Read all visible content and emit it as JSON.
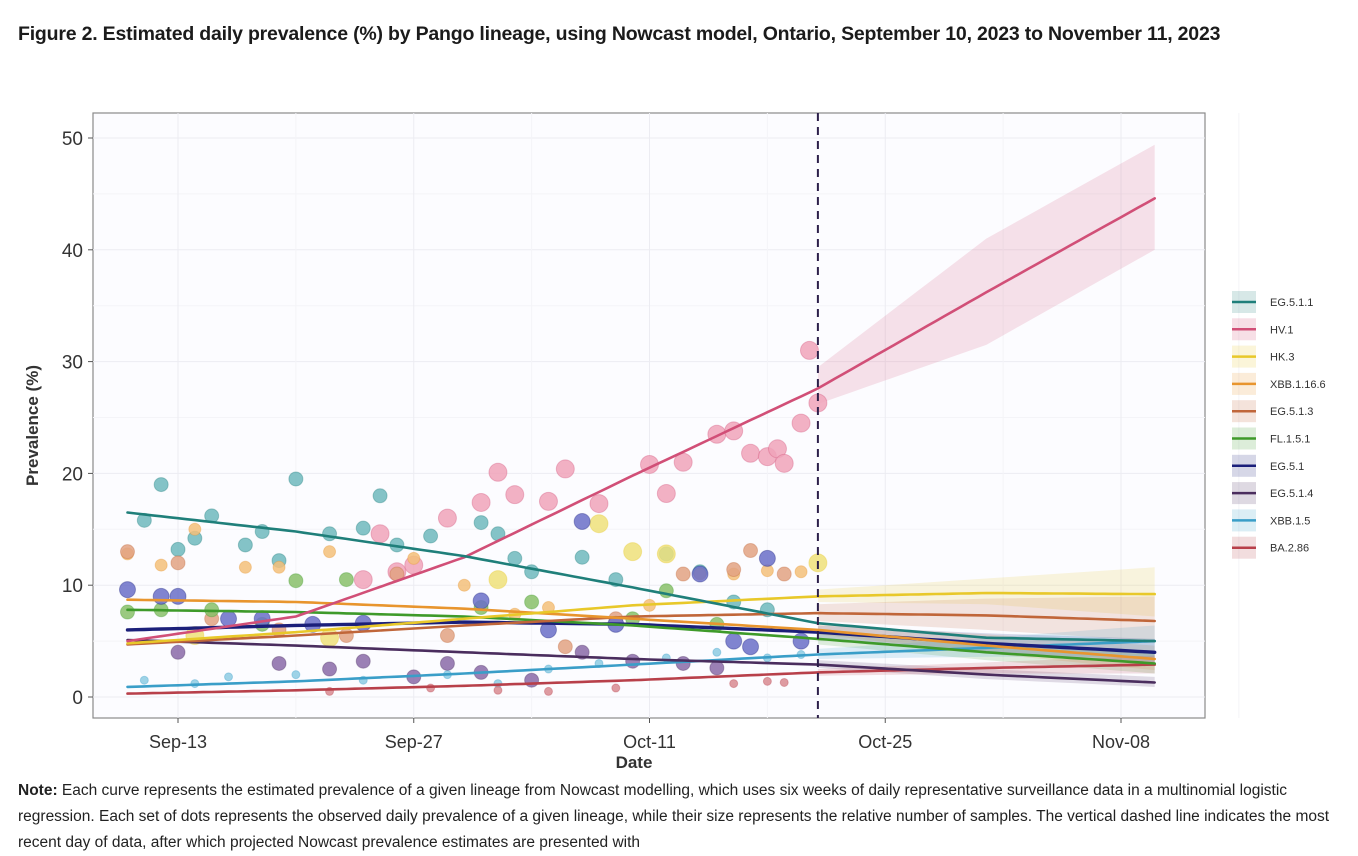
{
  "figure": {
    "title": "Figure 2. Estimated daily prevalence (%) by Pango lineage, using Nowcast model, Ontario, September 10, 2023 to November 11, 2023",
    "note_label": "Note:",
    "note_text": " Each curve represents the estimated prevalence of a given lineage from Nowcast modelling, which uses six weeks of daily representative surveillance data in a multinomial logistic regression. Each set of dots represents the observed daily prevalence of a given lineage, while their size represents the relative number of samples. The vertical dashed line indicates the most recent day of data, after which projected Nowcast prevalence estimates are presented with"
  },
  "chart_data": {
    "type": "line",
    "title": "Estimated daily prevalence (%) by Pango lineage, using Nowcast model, Ontario, September 10, 2023 to November 11, 2023",
    "xlabel": "Date",
    "ylabel": "Prevalence (%)",
    "x_range_days": [
      -4,
      63
    ],
    "x_origin": "Sep-10",
    "x_ticks": [
      {
        "label": "Sep-13",
        "day": 3
      },
      {
        "label": "Sep-27",
        "day": 17
      },
      {
        "label": "Oct-11",
        "day": 31
      },
      {
        "label": "Oct-25",
        "day": 45
      },
      {
        "label": "Nov-08",
        "day": 59
      }
    ],
    "ylim": [
      -2,
      52
    ],
    "y_ticks": [
      0,
      10,
      20,
      30,
      40,
      50
    ],
    "grid": true,
    "legend_position": "right",
    "last_data_day": 41,
    "last_data_label": "Oct-21",
    "series": [
      {
        "name": "EG.5.1.1",
        "color": "#1f7f7a",
        "dot_color": "#6fb8bd",
        "band": 0.0,
        "curve_days": [
          0,
          10,
          20,
          30,
          41,
          51,
          61
        ],
        "curve_values": [
          16.5,
          14.8,
          12.6,
          9.8,
          6.6,
          5.3,
          5.0
        ],
        "dots": [
          [
            1,
            15.8
          ],
          [
            2,
            19
          ],
          [
            3,
            13.2
          ],
          [
            4,
            14.2
          ],
          [
            5,
            16.2
          ],
          [
            7,
            13.6
          ],
          [
            8,
            14.8
          ],
          [
            9,
            12.2
          ],
          [
            10,
            19.5
          ],
          [
            12,
            14.6
          ],
          [
            14,
            15.1
          ],
          [
            15,
            18
          ],
          [
            16,
            13.6
          ],
          [
            18,
            14.4
          ],
          [
            21,
            15.6
          ],
          [
            22,
            14.6
          ],
          [
            23,
            12.4
          ],
          [
            24,
            11.2
          ],
          [
            27,
            12.5
          ],
          [
            29,
            10.5
          ],
          [
            32,
            12.8
          ],
          [
            34,
            11.2
          ],
          [
            36,
            8.5
          ],
          [
            38,
            7.8
          ]
        ]
      },
      {
        "name": "HV.1",
        "color": "#d14f77",
        "dot_color": "#f0a3ba",
        "band": 1.0,
        "curve_days": [
          0,
          10,
          20,
          30,
          41,
          51,
          61
        ],
        "curve_values": [
          5.0,
          7.2,
          12.5,
          19.8,
          27.6,
          36.2,
          44.6
        ],
        "band_lo": [
          5.0,
          7.2,
          12.5,
          19.8,
          26.2,
          31.5,
          40.0
        ],
        "band_hi": [
          5.0,
          7.2,
          12.5,
          19.8,
          29.5,
          41.0,
          49.4
        ],
        "dots": [
          [
            14,
            10.5
          ],
          [
            15,
            14.6
          ],
          [
            16,
            11.2
          ],
          [
            17,
            11.8
          ],
          [
            19,
            16
          ],
          [
            21,
            17.4
          ],
          [
            22,
            20.1
          ],
          [
            23,
            18.1
          ],
          [
            25,
            17.5
          ],
          [
            26,
            20.4
          ],
          [
            28,
            17.3
          ],
          [
            31,
            20.8
          ],
          [
            32,
            18.2
          ],
          [
            33,
            21
          ],
          [
            35,
            23.5
          ],
          [
            36,
            23.8
          ],
          [
            37,
            21.8
          ],
          [
            38,
            21.5
          ],
          [
            38.6,
            22.2
          ],
          [
            39,
            20.9
          ],
          [
            40,
            24.5
          ],
          [
            40.5,
            31
          ],
          [
            41,
            26.3
          ]
        ]
      },
      {
        "name": "HK.3",
        "color": "#e8c82a",
        "dot_color": "#efe07a",
        "band": 1.5,
        "curve_days": [
          0,
          10,
          20,
          30,
          41,
          51,
          61
        ],
        "curve_values": [
          4.8,
          5.8,
          7.0,
          8.2,
          9.0,
          9.3,
          9.2
        ],
        "band_lo": [
          4.8,
          5.8,
          7.0,
          8.2,
          8.5,
          8.3,
          7.2
        ],
        "band_hi": [
          4.8,
          5.8,
          7.0,
          8.2,
          9.6,
          10.6,
          11.6
        ],
        "dots": [
          [
            4,
            5.5
          ],
          [
            12,
            5.3
          ],
          [
            22,
            10.5
          ],
          [
            28,
            15.5
          ],
          [
            30,
            13
          ],
          [
            32,
            12.8
          ],
          [
            41,
            12
          ]
        ]
      },
      {
        "name": "XBB.1.16.6",
        "color": "#e8952e",
        "dot_color": "#f3c07a",
        "band": 1.0,
        "curve_days": [
          0,
          10,
          20,
          30,
          41,
          51,
          61
        ],
        "curve_values": [
          8.7,
          8.5,
          7.9,
          7.0,
          6.0,
          4.6,
          3.4
        ],
        "band_lo": [
          8.7,
          8.5,
          7.9,
          7.0,
          5.6,
          3.9,
          2.4
        ],
        "band_hi": [
          8.7,
          8.5,
          7.9,
          7.0,
          6.5,
          5.6,
          4.6
        ],
        "dots": [
          [
            0,
            12.8
          ],
          [
            2,
            11.8
          ],
          [
            4,
            15
          ],
          [
            7,
            11.6
          ],
          [
            9,
            11.6
          ],
          [
            12,
            13
          ],
          [
            17,
            12.4
          ],
          [
            20,
            10
          ],
          [
            23,
            7.4
          ],
          [
            25,
            8
          ],
          [
            31,
            8.2
          ],
          [
            34,
            11
          ],
          [
            36,
            11
          ],
          [
            38,
            11.3
          ],
          [
            40,
            11.2
          ]
        ]
      },
      {
        "name": "EG.5.1.3",
        "color": "#c0663a",
        "dot_color": "#e2a283",
        "band": 1.5,
        "curve_days": [
          0,
          10,
          20,
          30,
          41,
          51,
          61
        ],
        "curve_values": [
          4.7,
          5.5,
          6.4,
          7.2,
          7.5,
          7.3,
          6.8
        ],
        "band_lo": [
          4.7,
          5.5,
          6.4,
          7.2,
          6.8,
          6.0,
          5.0
        ],
        "band_hi": [
          4.7,
          5.5,
          6.4,
          7.2,
          8.3,
          8.8,
          9.0
        ],
        "dots": [
          [
            0,
            13
          ],
          [
            3,
            12
          ],
          [
            5,
            7
          ],
          [
            9,
            6
          ],
          [
            13,
            5.5
          ],
          [
            16,
            11
          ],
          [
            19,
            5.5
          ],
          [
            26,
            4.5
          ],
          [
            29,
            7
          ],
          [
            33,
            11
          ],
          [
            36,
            11.4
          ],
          [
            37,
            13.1
          ],
          [
            39,
            11
          ]
        ]
      },
      {
        "name": "FL.1.5.1",
        "color": "#3e9a2a",
        "dot_color": "#88c06a",
        "band": 1.0,
        "curve_days": [
          0,
          10,
          20,
          30,
          41,
          51,
          61
        ],
        "curve_values": [
          7.8,
          7.6,
          7.2,
          6.4,
          5.2,
          4.0,
          3.0
        ],
        "band_lo": [
          7.8,
          7.6,
          7.2,
          6.4,
          4.7,
          3.3,
          2.1
        ],
        "band_hi": [
          7.8,
          7.6,
          7.2,
          6.4,
          5.7,
          4.8,
          4.0
        ],
        "dots": [
          [
            0,
            7.6
          ],
          [
            2,
            7.8
          ],
          [
            5,
            7.8
          ],
          [
            8,
            6.5
          ],
          [
            10,
            10.4
          ],
          [
            13,
            10.5
          ],
          [
            21,
            8
          ],
          [
            24,
            8.5
          ],
          [
            30,
            7
          ],
          [
            32,
            9.5
          ],
          [
            35,
            6.5
          ]
        ]
      },
      {
        "name": "EG.5.1",
        "color": "#1b1f7a",
        "dot_color": "#6a6ec8",
        "band": 1.0,
        "curve_days": [
          0,
          10,
          20,
          30,
          41,
          51,
          61
        ],
        "curve_values": [
          6.0,
          6.4,
          6.7,
          6.5,
          5.8,
          4.8,
          4.0
        ],
        "band_lo": [
          6.0,
          6.4,
          6.7,
          6.5,
          5.3,
          4.0,
          3.0
        ],
        "band_hi": [
          6.0,
          6.4,
          6.7,
          6.5,
          6.4,
          5.7,
          5.2
        ],
        "dots": [
          [
            0,
            9.6
          ],
          [
            2,
            9
          ],
          [
            3,
            9
          ],
          [
            6,
            7
          ],
          [
            8,
            7
          ],
          [
            11,
            6.5
          ],
          [
            14,
            6.6
          ],
          [
            21,
            8.6
          ],
          [
            25,
            6
          ],
          [
            27,
            15.7
          ],
          [
            29,
            6.5
          ],
          [
            34,
            11
          ],
          [
            36,
            5
          ],
          [
            37,
            4.5
          ],
          [
            38,
            12.4
          ],
          [
            40,
            5
          ]
        ]
      },
      {
        "name": "EG.5.1.4",
        "color": "#4a2d5e",
        "dot_color": "#8a6aa8",
        "band": 0.8,
        "curve_days": [
          0,
          10,
          20,
          30,
          41,
          51,
          61
        ],
        "curve_values": [
          5.1,
          4.6,
          4.0,
          3.4,
          2.9,
          2.0,
          1.3
        ],
        "band_lo": [
          5.1,
          4.6,
          4.0,
          3.4,
          2.6,
          1.6,
          0.9
        ],
        "band_hi": [
          5.1,
          4.6,
          4.0,
          3.4,
          3.3,
          2.5,
          1.8
        ],
        "dots": [
          [
            3,
            4
          ],
          [
            9,
            3
          ],
          [
            12,
            2.5
          ],
          [
            14,
            3.2
          ],
          [
            17,
            1.8
          ],
          [
            19,
            3
          ],
          [
            21,
            2.2
          ],
          [
            24,
            1.5
          ],
          [
            27,
            4
          ],
          [
            30,
            3.2
          ],
          [
            33,
            3
          ],
          [
            35,
            2.6
          ]
        ]
      },
      {
        "name": "XBB.1.5",
        "color": "#3a9ec8",
        "dot_color": "#8dcbe3",
        "band": 1.0,
        "curve_days": [
          0,
          10,
          20,
          30,
          41,
          51,
          61
        ],
        "curve_values": [
          0.9,
          1.4,
          2.1,
          2.9,
          3.8,
          4.4,
          5.0
        ],
        "band_lo": [
          0.9,
          1.4,
          2.1,
          2.9,
          3.4,
          3.6,
          3.6
        ],
        "band_hi": [
          0.9,
          1.4,
          2.1,
          2.9,
          4.3,
          5.3,
          6.4
        ],
        "dots": [
          [
            1,
            1.5
          ],
          [
            4,
            1.2
          ],
          [
            6,
            1.8
          ],
          [
            10,
            2
          ],
          [
            14,
            1.5
          ],
          [
            19,
            2
          ],
          [
            22,
            1.2
          ],
          [
            25,
            2.5
          ],
          [
            28,
            3
          ],
          [
            32,
            3.5
          ],
          [
            35,
            4
          ],
          [
            38,
            3.5
          ],
          [
            40,
            3.8
          ]
        ]
      },
      {
        "name": "BA.2.86",
        "color": "#b8404a",
        "dot_color": "#d88a90",
        "band": 0.8,
        "curve_days": [
          0,
          10,
          20,
          30,
          41,
          51,
          61
        ],
        "curve_values": [
          0.3,
          0.6,
          1.0,
          1.5,
          2.2,
          2.6,
          2.9
        ],
        "band_lo": [
          0.3,
          0.6,
          1.0,
          1.5,
          1.9,
          2.1,
          2.1
        ],
        "band_hi": [
          0.3,
          0.6,
          1.0,
          1.5,
          2.5,
          3.1,
          3.7
        ],
        "dots": [
          [
            12,
            0.5
          ],
          [
            18,
            0.8
          ],
          [
            22,
            0.6
          ],
          [
            25,
            0.5
          ],
          [
            29,
            0.8
          ],
          [
            36,
            1.2
          ],
          [
            38,
            1.4
          ],
          [
            39,
            1.3
          ]
        ]
      }
    ]
  }
}
